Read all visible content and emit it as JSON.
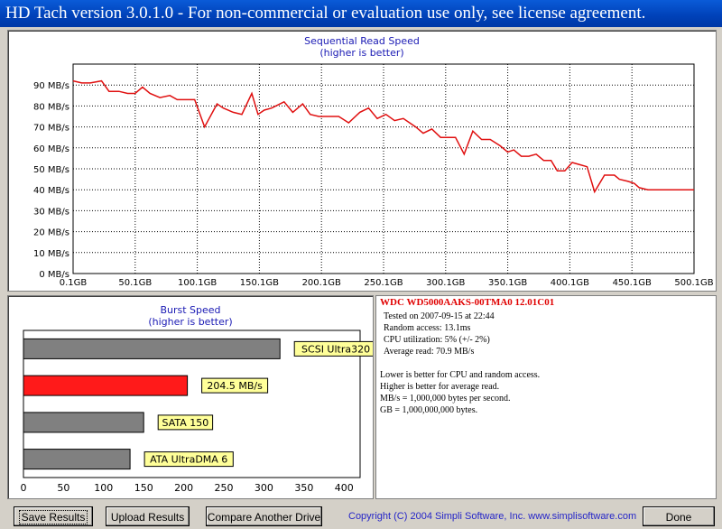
{
  "window": {
    "title": "HD Tach version 3.0.1.0  - For non-commercial or evaluation use only, see license agreement."
  },
  "read_chart": {
    "title": "Sequential Read Speed",
    "subtitle": "(higher is better)",
    "y_ticks": [
      "0 MB/s",
      "10 MB/s",
      "20 MB/s",
      "30 MB/s",
      "40 MB/s",
      "50 MB/s",
      "60 MB/s",
      "70 MB/s",
      "80 MB/s",
      "90 MB/s"
    ],
    "x_ticks": [
      "0.1GB",
      "50.1GB",
      "100.1GB",
      "150.1GB",
      "200.1GB",
      "250.1GB",
      "300.1GB",
      "350.1GB",
      "400.1GB",
      "450.1GB",
      "500.1GB"
    ],
    "line_color": "#e01010"
  },
  "chart_data": [
    {
      "type": "line",
      "title": "Sequential Read Speed",
      "subtitle": "(higher is better)",
      "xlabel": "",
      "ylabel": "",
      "xlim": [
        0.1,
        500.1
      ],
      "ylim": [
        0,
        100
      ],
      "grid": true,
      "series": [
        {
          "x": [
            0.1,
            7,
            14,
            23,
            29,
            37,
            44,
            50,
            56,
            62,
            70,
            78,
            84,
            92,
            98,
            106,
            116,
            121,
            129,
            136,
            144,
            149,
            154,
            160,
            170,
            177,
            185,
            191,
            198,
            206,
            214,
            222,
            231,
            238,
            245,
            252,
            259,
            266,
            271,
            276,
            282,
            289,
            296,
            302,
            308,
            315,
            322,
            329,
            336,
            344,
            350,
            355,
            361,
            367,
            373,
            379,
            385,
            390,
            396,
            402,
            408,
            414,
            420,
            428,
            436,
            440,
            447,
            452,
            456,
            463,
            468,
            473,
            480,
            486,
            493,
            500.1
          ],
          "y": [
            92,
            91,
            91,
            92,
            87,
            87,
            86,
            86,
            89,
            86,
            84,
            85,
            83,
            83,
            83,
            70,
            81,
            79,
            77,
            76,
            86,
            76,
            78,
            79,
            82,
            77,
            81,
            76,
            75,
            75,
            75,
            72,
            77,
            79,
            74,
            76,
            73,
            74,
            72,
            70,
            67,
            69,
            65,
            65,
            65,
            57,
            68,
            64,
            64,
            61,
            58,
            59,
            56,
            56,
            57,
            54,
            54,
            49,
            49,
            53,
            52,
            51,
            39,
            47,
            47,
            45,
            44,
            43,
            41,
            40,
            40,
            40,
            40,
            40,
            40,
            40
          ]
        }
      ]
    },
    {
      "type": "bar",
      "title": "Burst Speed",
      "subtitle": "(higher is better)",
      "orientation": "horizontal",
      "xlim": [
        0,
        420
      ],
      "x_ticks": [
        0,
        50,
        100,
        150,
        200,
        250,
        300,
        350,
        400
      ],
      "categories": [
        "SCSI Ultra320",
        "204.5 MB/s",
        "SATA 150",
        "ATA UltraDMA 6"
      ],
      "values": [
        320,
        204.5,
        150,
        133
      ],
      "colors": [
        "#808080",
        "#ff0000",
        "#808080",
        "#808080"
      ]
    }
  ],
  "burst_chart": {
    "title": "Burst Speed",
    "subtitle": "(higher is better)",
    "x_ticks": [
      "0",
      "50",
      "100",
      "150",
      "200",
      "250",
      "300",
      "350",
      "400"
    ],
    "bars": [
      {
        "label": "SCSI Ultra320",
        "value": 320,
        "color": "#808080"
      },
      {
        "label": "204.5 MB/s",
        "value": 204.5,
        "color": "#ff1a1a"
      },
      {
        "label": "SATA 150",
        "value": 150,
        "color": "#808080"
      },
      {
        "label": "ATA UltraDMA 6",
        "value": 133,
        "color": "#808080"
      }
    ]
  },
  "info": {
    "drive": "WDC WD5000AAKS-00TMA0 12.01C01",
    "tested": "Tested on 2007-09-15 at 22:44",
    "random_access": "Random access: 13.1ms",
    "cpu": "CPU utilization: 5% (+/- 2%)",
    "average": "Average read: 70.9 MB/s",
    "note1": "Lower is better for CPU and random access.",
    "note2": "Higher is better for average read.",
    "note3": "MB/s = 1,000,000 bytes per second.",
    "note4": "GB = 1,000,000,000 bytes."
  },
  "buttons": {
    "save": "Save Results",
    "upload": "Upload Results",
    "compare": "Compare Another Drive",
    "done": "Done"
  },
  "footer": {
    "copyright": "Copyright (C) 2004 Simpli Software, Inc. www.simplisoftware.com"
  }
}
